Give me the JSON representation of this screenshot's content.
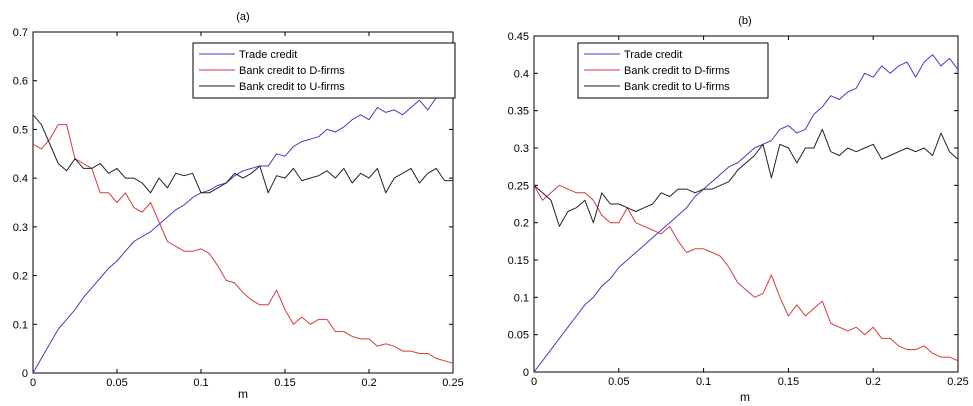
{
  "chart_data": [
    {
      "type": "line",
      "title": "(a)",
      "xlabel": "m",
      "ylabel": "",
      "xlim": [
        0,
        0.25
      ],
      "ylim": [
        0,
        0.7
      ],
      "xticks": [
        "0",
        "0.05",
        "0.1",
        "0.15",
        "0.2",
        "0.25"
      ],
      "yticks": [
        "0",
        "0.1",
        "0.2",
        "0.3",
        "0.4",
        "0.5",
        "0.6",
        "0.7"
      ],
      "legend_position": "top-right",
      "grid": false,
      "x": [
        0,
        0.005,
        0.01,
        0.015,
        0.02,
        0.025,
        0.03,
        0.035,
        0.04,
        0.045,
        0.05,
        0.055,
        0.06,
        0.065,
        0.07,
        0.075,
        0.08,
        0.085,
        0.09,
        0.095,
        0.1,
        0.105,
        0.11,
        0.115,
        0.12,
        0.125,
        0.13,
        0.135,
        0.14,
        0.145,
        0.15,
        0.155,
        0.16,
        0.165,
        0.17,
        0.175,
        0.18,
        0.185,
        0.19,
        0.195,
        0.2,
        0.205,
        0.21,
        0.215,
        0.22,
        0.225,
        0.23,
        0.235,
        0.24,
        0.245,
        0.25
      ],
      "series": [
        {
          "name": "Trade credit",
          "color": "#3f3fbf",
          "values": [
            0,
            0.03,
            0.06,
            0.09,
            0.11,
            0.13,
            0.155,
            0.175,
            0.195,
            0.215,
            0.23,
            0.25,
            0.27,
            0.28,
            0.29,
            0.305,
            0.32,
            0.335,
            0.345,
            0.36,
            0.37,
            0.375,
            0.385,
            0.39,
            0.405,
            0.415,
            0.42,
            0.425,
            0.425,
            0.45,
            0.445,
            0.465,
            0.475,
            0.48,
            0.485,
            0.5,
            0.495,
            0.505,
            0.52,
            0.53,
            0.52,
            0.545,
            0.535,
            0.54,
            0.53,
            0.545,
            0.56,
            0.54,
            0.565,
            0.565,
            0.57
          ]
        },
        {
          "name": "Bank credit to D-firms",
          "color": "#d23c3c",
          "values": [
            0.47,
            0.46,
            0.48,
            0.51,
            0.51,
            0.44,
            0.43,
            0.42,
            0.37,
            0.37,
            0.35,
            0.37,
            0.34,
            0.33,
            0.35,
            0.31,
            0.27,
            0.26,
            0.25,
            0.25,
            0.255,
            0.245,
            0.22,
            0.19,
            0.185,
            0.165,
            0.15,
            0.14,
            0.14,
            0.17,
            0.13,
            0.1,
            0.115,
            0.1,
            0.11,
            0.11,
            0.085,
            0.085,
            0.075,
            0.07,
            0.07,
            0.055,
            0.06,
            0.055,
            0.045,
            0.045,
            0.04,
            0.04,
            0.03,
            0.025,
            0.02
          ]
        },
        {
          "name": "Bank credit to U-firms",
          "color": "#222222",
          "values": [
            0.53,
            0.51,
            0.47,
            0.43,
            0.415,
            0.44,
            0.42,
            0.42,
            0.43,
            0.41,
            0.42,
            0.4,
            0.4,
            0.39,
            0.37,
            0.4,
            0.38,
            0.41,
            0.405,
            0.41,
            0.37,
            0.37,
            0.38,
            0.39,
            0.41,
            0.4,
            0.41,
            0.425,
            0.37,
            0.405,
            0.4,
            0.42,
            0.395,
            0.4,
            0.405,
            0.415,
            0.4,
            0.42,
            0.39,
            0.41,
            0.4,
            0.42,
            0.37,
            0.4,
            0.41,
            0.42,
            0.39,
            0.41,
            0.42,
            0.395,
            0.395
          ]
        }
      ]
    },
    {
      "type": "line",
      "title": "(b)",
      "xlabel": "m",
      "ylabel": "",
      "xlim": [
        0,
        0.25
      ],
      "ylim": [
        0,
        0.45
      ],
      "xticks": [
        "0",
        "0.05",
        "0.1",
        "0.15",
        "0.2",
        "0.25"
      ],
      "yticks": [
        "0",
        "0.05",
        "0.1",
        "0.15",
        "0.2",
        "0.25",
        "0.3",
        "0.35",
        "0.4",
        "0.45"
      ],
      "legend_position": "top-left",
      "grid": false,
      "x": [
        0,
        0.005,
        0.01,
        0.015,
        0.02,
        0.025,
        0.03,
        0.035,
        0.04,
        0.045,
        0.05,
        0.055,
        0.06,
        0.065,
        0.07,
        0.075,
        0.08,
        0.085,
        0.09,
        0.095,
        0.1,
        0.105,
        0.11,
        0.115,
        0.12,
        0.125,
        0.13,
        0.135,
        0.14,
        0.145,
        0.15,
        0.155,
        0.16,
        0.165,
        0.17,
        0.175,
        0.18,
        0.185,
        0.19,
        0.195,
        0.2,
        0.205,
        0.21,
        0.215,
        0.22,
        0.225,
        0.23,
        0.235,
        0.24,
        0.245,
        0.25
      ],
      "series": [
        {
          "name": "Trade credit",
          "color": "#3f3fbf",
          "values": [
            0,
            0.015,
            0.03,
            0.045,
            0.06,
            0.075,
            0.09,
            0.1,
            0.115,
            0.125,
            0.14,
            0.15,
            0.16,
            0.17,
            0.18,
            0.19,
            0.2,
            0.21,
            0.22,
            0.235,
            0.245,
            0.255,
            0.265,
            0.275,
            0.28,
            0.29,
            0.3,
            0.305,
            0.31,
            0.325,
            0.33,
            0.32,
            0.325,
            0.345,
            0.355,
            0.37,
            0.365,
            0.375,
            0.38,
            0.4,
            0.395,
            0.41,
            0.4,
            0.41,
            0.415,
            0.395,
            0.415,
            0.425,
            0.41,
            0.42,
            0.405
          ]
        },
        {
          "name": "Bank credit to D-firms",
          "color": "#d23c3c",
          "values": [
            0.25,
            0.23,
            0.24,
            0.25,
            0.245,
            0.24,
            0.24,
            0.23,
            0.21,
            0.2,
            0.2,
            0.22,
            0.2,
            0.195,
            0.19,
            0.185,
            0.195,
            0.175,
            0.16,
            0.165,
            0.165,
            0.16,
            0.155,
            0.14,
            0.12,
            0.11,
            0.1,
            0.105,
            0.13,
            0.1,
            0.075,
            0.09,
            0.075,
            0.085,
            0.095,
            0.065,
            0.06,
            0.055,
            0.06,
            0.05,
            0.06,
            0.045,
            0.045,
            0.035,
            0.03,
            0.03,
            0.035,
            0.025,
            0.02,
            0.02,
            0.015
          ]
        },
        {
          "name": "Bank credit to U-firms",
          "color": "#222222",
          "values": [
            0.25,
            0.24,
            0.23,
            0.195,
            0.215,
            0.22,
            0.23,
            0.2,
            0.24,
            0.225,
            0.225,
            0.22,
            0.215,
            0.22,
            0.225,
            0.24,
            0.235,
            0.245,
            0.245,
            0.24,
            0.245,
            0.245,
            0.25,
            0.255,
            0.27,
            0.28,
            0.29,
            0.305,
            0.26,
            0.305,
            0.3,
            0.28,
            0.3,
            0.3,
            0.325,
            0.295,
            0.29,
            0.3,
            0.295,
            0.3,
            0.305,
            0.285,
            0.29,
            0.295,
            0.3,
            0.295,
            0.3,
            0.29,
            0.32,
            0.295,
            0.285
          ]
        }
      ]
    }
  ]
}
